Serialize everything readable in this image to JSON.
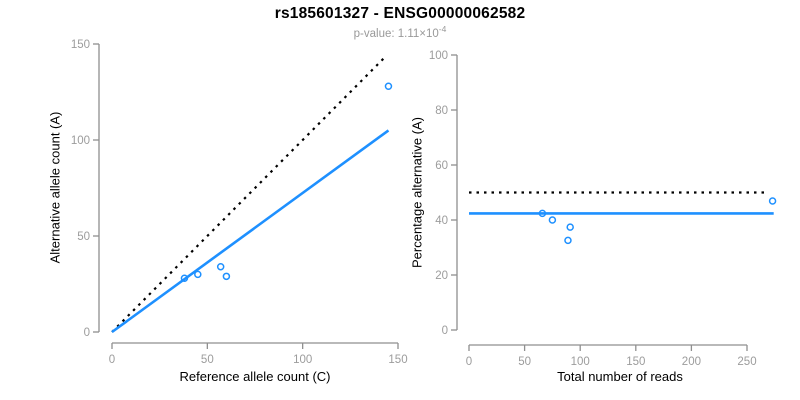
{
  "header": {
    "title": "rs185601327 - ENSG00000062582",
    "subtitle_prefix": "p-value: 1.11×10",
    "subtitle_exponent": "-4"
  },
  "colors": {
    "accent_blue": "#1E90FF",
    "line_black": "#000000",
    "axis_gray": "#8f8f8f",
    "tick_label_gray": "#9c9c9c",
    "label_black": "#000000",
    "subtitle_gray": "#999999"
  },
  "chart_data": [
    {
      "type": "scatter",
      "panel": "left",
      "xlabel": "Reference allele count (C)",
      "ylabel": "Alternative allele count (A)",
      "xlim": [
        0,
        150
      ],
      "ylim": [
        0,
        150
      ],
      "xticks": [
        0,
        50,
        100,
        150
      ],
      "yticks": [
        0,
        50,
        100,
        150
      ],
      "grid": false,
      "legend": "none",
      "points": [
        [
          38,
          28
        ],
        [
          45,
          30
        ],
        [
          57,
          34
        ],
        [
          60,
          29
        ],
        [
          145,
          128
        ]
      ],
      "lines": [
        {
          "name": "identity-line",
          "style": "dotted",
          "color": "#000000",
          "x1": 0,
          "y1": 0,
          "x2": 144,
          "y2": 144
        },
        {
          "name": "regression-line",
          "style": "solid",
          "color": "#1E90FF",
          "x1": 0,
          "y1": 0,
          "x2": 145,
          "y2": 105
        }
      ]
    },
    {
      "type": "scatter",
      "panel": "right",
      "xlabel": "Total number of reads",
      "ylabel": "Percentage alternative (A)",
      "xlim": [
        0,
        275
      ],
      "ylim": [
        0,
        100
      ],
      "xticks": [
        0,
        50,
        100,
        150,
        200,
        250
      ],
      "yticks": [
        0,
        20,
        40,
        60,
        80,
        100
      ],
      "grid": false,
      "legend": "none",
      "points": [
        [
          66,
          42.4
        ],
        [
          75,
          40
        ],
        [
          91,
          37.4
        ],
        [
          89,
          32.6
        ],
        [
          273,
          46.9
        ]
      ],
      "lines": [
        {
          "name": "null-50pct-line",
          "style": "dotted",
          "color": "#000000",
          "x1": 0,
          "y1": 50,
          "x2": 268,
          "y2": 50
        },
        {
          "name": "fitted-percentage-line",
          "style": "solid",
          "color": "#1E90FF",
          "x1": 0,
          "y1": 42.4,
          "x2": 274,
          "y2": 42.4
        }
      ]
    }
  ]
}
